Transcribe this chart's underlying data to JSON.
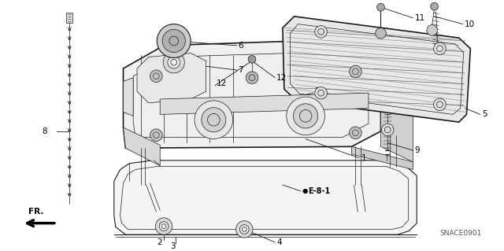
{
  "bg_color": "#ffffff",
  "line_color": "#1a1a1a",
  "label_color": "#000000",
  "fig_width": 6.4,
  "fig_height": 3.19,
  "dpi": 100,
  "watermark": "SNACE0901",
  "cross_ref": "E-8-1"
}
